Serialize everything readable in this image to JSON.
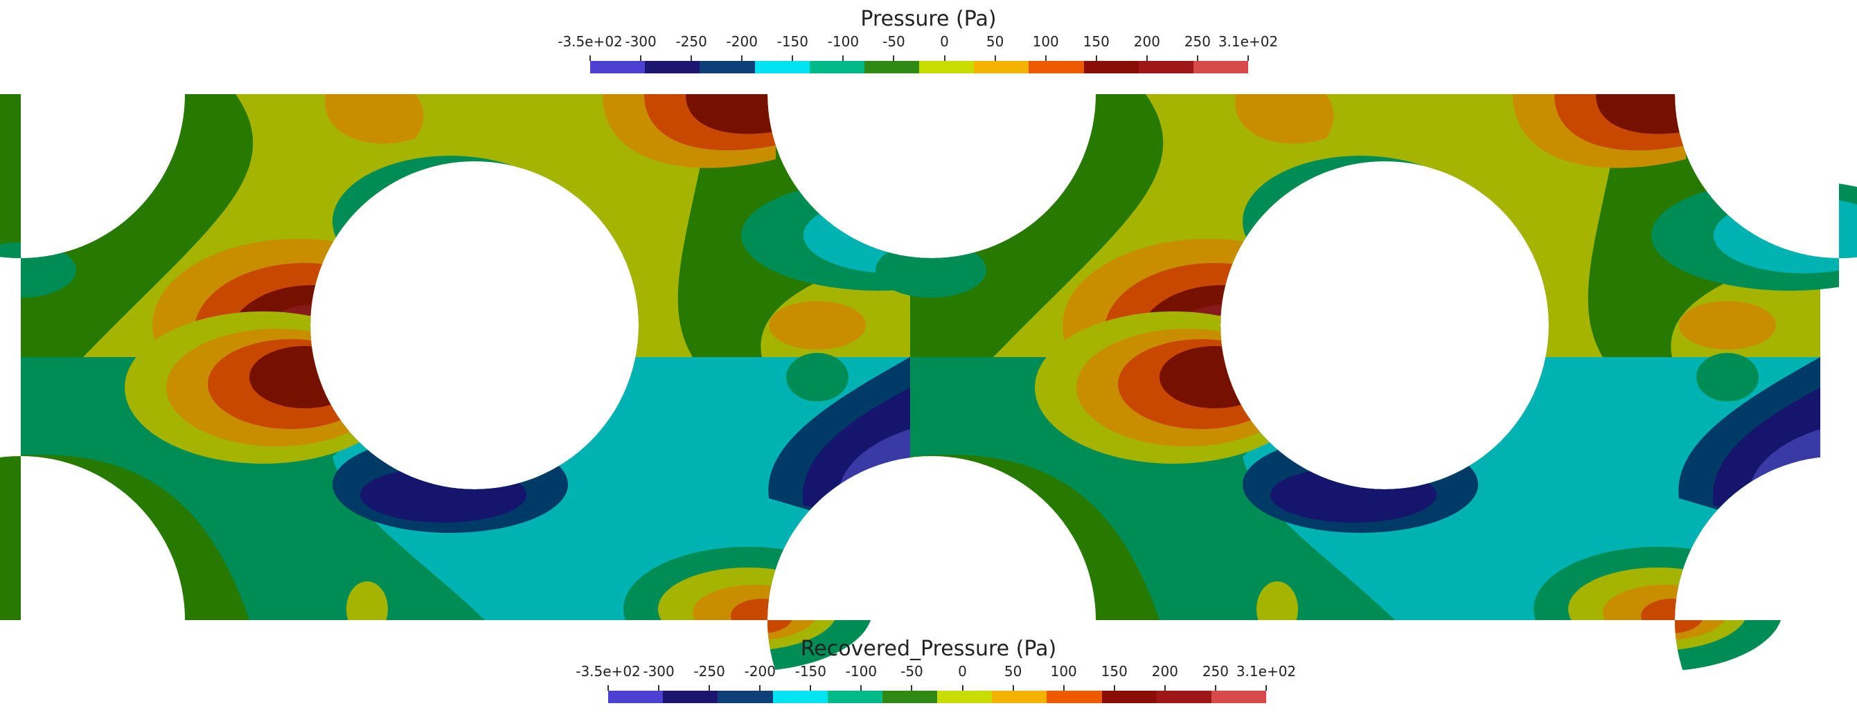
{
  "legends": {
    "top": {
      "title": "Pressure (Pa)",
      "ticks": [
        "-3.5e+02",
        "-300",
        "-250",
        "-200",
        "-150",
        "-100",
        "-50",
        "0",
        "50",
        "100",
        "150",
        "200",
        "250",
        "3.1e+02"
      ]
    },
    "bottom": {
      "title": "Recovered_Pressure (Pa)",
      "ticks": [
        "-3.5e+02",
        "-300",
        "-250",
        "-200",
        "-150",
        "-100",
        "-50",
        "0",
        "50",
        "100",
        "150",
        "200",
        "250",
        "3.1e+02"
      ]
    }
  },
  "colormap": [
    "#4b40d2",
    "#1a1670",
    "#0e3f78",
    "#00e3f0",
    "#00bb88",
    "#2e8a12",
    "#c8dc00",
    "#f3b300",
    "#ee5a00",
    "#8b0e06",
    "#9e1616",
    "#d84a4a"
  ],
  "palette": {
    "green": "#267a00",
    "olive": "#a5b400",
    "gold": "#c98e00",
    "orange": "#c84800",
    "darkred": "#761000",
    "maroon": "#861a1a",
    "salmon": "#c84848",
    "teal": "#008c55",
    "cyan": "#00b3b3",
    "navy": "#003a66",
    "indigo": "#15156e",
    "violet": "#3a3aa6"
  }
}
